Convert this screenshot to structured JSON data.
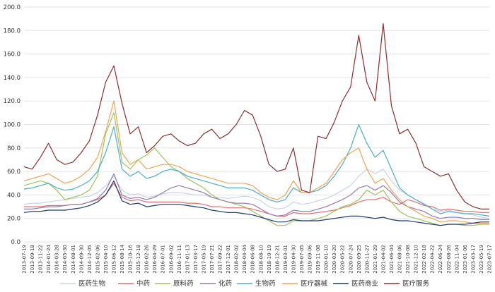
{
  "chart_data": {
    "type": "line",
    "title": "",
    "xlabel": "",
    "ylabel": "",
    "ylim": [
      0,
      200
    ],
    "yticks": [
      "0.0",
      "20.0",
      "40.0",
      "60.0",
      "80.0",
      "100.0",
      "120.0",
      "140.0",
      "160.0",
      "180.0",
      "200.0"
    ],
    "grid": "horizontal",
    "legend_position": "bottom",
    "x_labels": [
      "2013-07-19",
      "2013-09-18",
      "2013-11-22",
      "2014-01-24",
      "2014-03-28",
      "2014-05-30",
      "2014-08-01",
      "2014-09-30",
      "2014-12-05",
      "2015-02-06",
      "2015-04-10",
      "2015-06-12",
      "2015-08-14",
      "2015-10-16",
      "2015-12-18",
      "2016-02-26",
      "2016-04-29",
      "2016-07-01",
      "2016-09-02",
      "2016-11-11",
      "2017-01-13",
      "2017-03-17",
      "2017-05-19",
      "2017-07-21",
      "2017-09-22",
      "2017-12-01",
      "2018-02-02",
      "2018-04-04",
      "2018-06-08",
      "2018-08-10",
      "2018-10-19",
      "2018-12-21",
      "2019-03-01",
      "2019-04-30",
      "2019-07-05",
      "2019-09-06",
      "2019-11-08",
      "2020-01-10",
      "2020-03-20",
      "2020-05-22",
      "2020-07-24",
      "2020-09-25",
      "2020-11-27",
      "2021-01-29",
      "2021-04-02",
      "2021-06-04",
      "2021-08-06",
      "2021-10-08",
      "2021-12-10",
      "2022-02-18",
      "2022-04-22",
      "2022-06-24",
      "2022-08-26",
      "2022-11-04",
      "2023-01-06",
      "2023-03-17",
      "2023-05-19",
      "2023-07-17"
    ],
    "series": [
      {
        "name": "医药生物",
        "color": "#c9d3e8",
        "values": [
          32,
          33,
          33,
          34,
          35,
          36,
          37,
          38,
          39,
          42,
          48,
          56,
          44,
          40,
          41,
          38,
          39,
          41,
          42,
          42,
          41,
          40,
          40,
          38,
          38,
          37,
          38,
          39,
          38,
          35,
          30,
          28,
          29,
          34,
          32,
          33,
          35,
          37,
          40,
          44,
          48,
          56,
          62,
          58,
          62,
          52,
          44,
          40,
          36,
          33,
          28,
          26,
          27,
          25,
          24,
          23,
          21,
          20
        ]
      },
      {
        "name": "中药",
        "color": "#e06f6f",
        "values": [
          30,
          30,
          30,
          31,
          31,
          31,
          32,
          32,
          34,
          36,
          40,
          50,
          38,
          35,
          36,
          34,
          34,
          34,
          34,
          34,
          33,
          33,
          32,
          30,
          30,
          29,
          29,
          29,
          28,
          26,
          24,
          22,
          22,
          25,
          24,
          24,
          25,
          26,
          27,
          29,
          31,
          34,
          36,
          36,
          38,
          34,
          32,
          36,
          34,
          31,
          30,
          27,
          28,
          27,
          26,
          26,
          25,
          25
        ]
      },
      {
        "name": "原料药",
        "color": "#9bc45a",
        "values": [
          48,
          50,
          52,
          50,
          44,
          36,
          38,
          40,
          44,
          56,
          92,
          110,
          68,
          62,
          70,
          74,
          80,
          72,
          64,
          60,
          54,
          50,
          46,
          40,
          36,
          34,
          32,
          30,
          26,
          22,
          18,
          14,
          14,
          18,
          18,
          18,
          20,
          22,
          26,
          30,
          32,
          36,
          44,
          40,
          44,
          34,
          26,
          22,
          20,
          18,
          16,
          14,
          15,
          15,
          14,
          14,
          15,
          15
        ]
      },
      {
        "name": "化药",
        "color": "#9479b5",
        "values": [
          28,
          28,
          29,
          30,
          30,
          31,
          32,
          32,
          34,
          37,
          44,
          58,
          40,
          37,
          38,
          36,
          38,
          42,
          46,
          48,
          46,
          44,
          42,
          38,
          36,
          34,
          33,
          33,
          32,
          28,
          24,
          22,
          23,
          27,
          26,
          26,
          28,
          30,
          33,
          36,
          40,
          46,
          48,
          44,
          48,
          42,
          34,
          30,
          28,
          26,
          22,
          20,
          21,
          21,
          20,
          20,
          19,
          19
        ]
      },
      {
        "name": "生物药",
        "color": "#4aaec6",
        "values": [
          45,
          46,
          48,
          50,
          46,
          44,
          45,
          48,
          52,
          60,
          76,
          98,
          62,
          56,
          60,
          54,
          56,
          60,
          62,
          60,
          56,
          54,
          52,
          50,
          48,
          46,
          46,
          46,
          44,
          40,
          36,
          34,
          36,
          46,
          42,
          42,
          44,
          48,
          56,
          66,
          80,
          100,
          84,
          72,
          78,
          62,
          46,
          40,
          36,
          32,
          28,
          24,
          26,
          25,
          24,
          24,
          23,
          22
        ]
      },
      {
        "name": "医疗器械",
        "color": "#f2a254",
        "values": [
          52,
          54,
          56,
          58,
          54,
          50,
          52,
          56,
          62,
          72,
          94,
          120,
          76,
          66,
          70,
          62,
          64,
          66,
          66,
          64,
          60,
          58,
          56,
          54,
          52,
          50,
          50,
          50,
          48,
          42,
          38,
          36,
          40,
          52,
          42,
          42,
          46,
          50,
          60,
          70,
          76,
          80,
          62,
          50,
          54,
          44,
          36,
          30,
          26,
          22,
          20,
          17,
          18,
          18,
          17,
          16,
          16,
          16
        ]
      },
      {
        "name": "医药商业",
        "color": "#1e3a6e",
        "values": [
          25,
          26,
          26,
          27,
          27,
          27,
          28,
          29,
          31,
          34,
          40,
          52,
          35,
          32,
          33,
          30,
          31,
          32,
          32,
          32,
          31,
          30,
          29,
          27,
          26,
          25,
          25,
          24,
          23,
          21,
          19,
          17,
          17,
          19,
          18,
          18,
          18,
          19,
          20,
          21,
          22,
          22,
          21,
          20,
          21,
          19,
          18,
          18,
          17,
          16,
          15,
          14,
          15,
          15,
          15,
          16,
          17,
          17
        ]
      },
      {
        "name": "医疗服务",
        "color": "#8b2e2e",
        "values": [
          64,
          62,
          72,
          84,
          70,
          66,
          68,
          76,
          86,
          108,
          136,
          150,
          118,
          92,
          98,
          76,
          82,
          90,
          92,
          86,
          82,
          84,
          92,
          96,
          88,
          92,
          100,
          112,
          108,
          90,
          66,
          60,
          62,
          80,
          44,
          42,
          90,
          88,
          102,
          120,
          132,
          176,
          136,
          120,
          186,
          116,
          92,
          96,
          84,
          64,
          60,
          56,
          58,
          44,
          34,
          30,
          28,
          28
        ]
      }
    ]
  },
  "legend": [
    {
      "name": "医药生物",
      "color": "#c9d3e8"
    },
    {
      "name": "中药",
      "color": "#e06f6f"
    },
    {
      "name": "原料药",
      "color": "#9bc45a"
    },
    {
      "name": "化药",
      "color": "#9479b5"
    },
    {
      "name": "生物药",
      "color": "#4aaec6"
    },
    {
      "name": "医疗器械",
      "color": "#f2a254"
    },
    {
      "name": "医药商业",
      "color": "#1e3a6e"
    },
    {
      "name": "医疗服务",
      "color": "#8b2e2e"
    }
  ]
}
